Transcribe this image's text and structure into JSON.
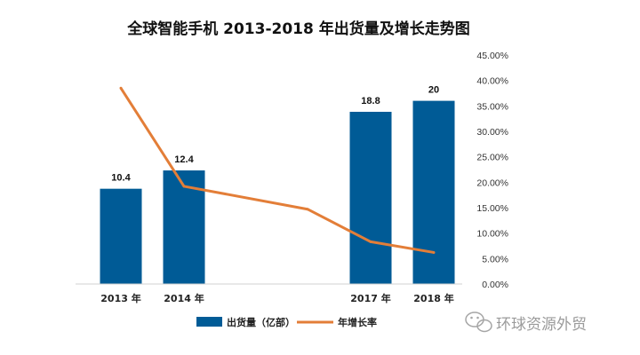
{
  "chart_data": {
    "type": "bar",
    "title": "全球智能手机 2013-2018 年出货量及增长走势图",
    "categories": [
      "2013 年",
      "2014 年",
      "",
      "2017 年",
      "2018 年"
    ],
    "series": [
      {
        "name": "出货量（亿部）",
        "type": "bar",
        "axis": "left",
        "values": [
          10.4,
          12.4,
          null,
          18.8,
          20
        ],
        "data_labels": [
          "10.4",
          "12.4",
          "",
          "18.8",
          "20"
        ],
        "color": "#005b96"
      },
      {
        "name": "年增长率",
        "type": "line",
        "axis": "right",
        "values": [
          38.5,
          19.2,
          14.7,
          8.3,
          6.2
        ],
        "unit": "%",
        "color": "#e37e38"
      }
    ],
    "y_left_lim": [
      0,
      25
    ],
    "y_right_lim": [
      0,
      45
    ],
    "y_right_ticks": [
      "0.00%",
      "5.00%",
      "10.00%",
      "15.00%",
      "20.00%",
      "25.00%",
      "30.00%",
      "35.00%",
      "40.00%",
      "45.00%"
    ],
    "grid": false,
    "legend_position": "bottom"
  },
  "watermark": {
    "text": "环球资源外贸",
    "icon": "wechat-icon"
  }
}
